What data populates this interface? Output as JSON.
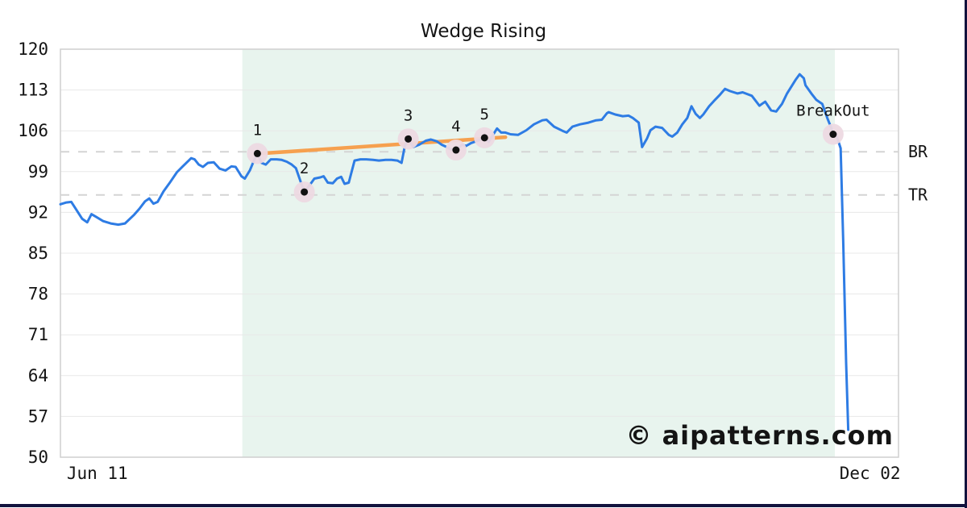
{
  "title": "Wedge Rising",
  "watermark": "© aipatterns.com",
  "colors": {
    "price_line": "#2e7ce4",
    "trendline": "#f6a04f",
    "marker_halo": "#edd9e1",
    "marker_dot": "#111111",
    "pattern_region": "#e8f4ee",
    "gridline": "#e8e8e8",
    "frame": "#cfcfcf",
    "level_dash": "#d4d4d4",
    "watermark": "#c5c8f0",
    "window_edge": "#12123e",
    "text": "#141414"
  },
  "chart_data": {
    "type": "line",
    "title": "Wedge Rising",
    "xlabel": "",
    "ylabel": "",
    "ylim": [
      50,
      120
    ],
    "yticks": [
      120,
      113,
      106,
      99,
      92,
      85,
      78,
      71,
      64,
      57,
      50
    ],
    "xticks": [
      {
        "label": "Jun 11",
        "pos": 4.4
      },
      {
        "label": "Dec 02",
        "pos": 96.6
      }
    ],
    "grid": true,
    "legend": "none",
    "pattern_region": {
      "start_pos": 21.7,
      "end_pos": 92.4
    },
    "levels": [
      {
        "label": "BR",
        "value": 102.4
      },
      {
        "label": "TR",
        "value": 95.0
      }
    ],
    "trendline": {
      "from": [
        23.8,
        102.1
      ],
      "to": [
        53.1,
        104.9
      ]
    },
    "markers": [
      {
        "label": "1",
        "pos": 23.5,
        "value": 102.1
      },
      {
        "label": "2",
        "pos": 29.1,
        "value": 95.5
      },
      {
        "label": "3",
        "pos": 41.5,
        "value": 104.6
      },
      {
        "label": "4",
        "pos": 47.2,
        "value": 102.7
      },
      {
        "label": "5",
        "pos": 50.6,
        "value": 104.8
      },
      {
        "label": "BreakOut",
        "pos": 92.2,
        "value": 105.4
      }
    ],
    "series": [
      {
        "name": "price",
        "points": [
          [
            0,
            93.4
          ],
          [
            0.7,
            93.7
          ],
          [
            1.3,
            93.8
          ],
          [
            2.6,
            90.9
          ],
          [
            3.2,
            90.3
          ],
          [
            3.7,
            91.7
          ],
          [
            4.3,
            91.2
          ],
          [
            5.1,
            90.5
          ],
          [
            6.0,
            90.1
          ],
          [
            6.9,
            89.9
          ],
          [
            7.7,
            90.1
          ],
          [
            8.8,
            91.6
          ],
          [
            9.4,
            92.6
          ],
          [
            10.1,
            93.9
          ],
          [
            10.6,
            94.4
          ],
          [
            11.1,
            93.5
          ],
          [
            11.6,
            93.8
          ],
          [
            12.3,
            95.6
          ],
          [
            13.0,
            97.0
          ],
          [
            13.9,
            98.9
          ],
          [
            14.6,
            99.9
          ],
          [
            15.6,
            101.3
          ],
          [
            16.0,
            101.1
          ],
          [
            16.5,
            100.2
          ],
          [
            17.0,
            99.8
          ],
          [
            17.6,
            100.5
          ],
          [
            18.3,
            100.6
          ],
          [
            19.0,
            99.5
          ],
          [
            19.7,
            99.2
          ],
          [
            20.4,
            99.9
          ],
          [
            20.9,
            99.8
          ],
          [
            21.6,
            98.2
          ],
          [
            22.0,
            97.8
          ],
          [
            22.6,
            99.2
          ],
          [
            23.1,
            100.9
          ],
          [
            23.5,
            102.1
          ],
          [
            24.0,
            100.5
          ],
          [
            24.5,
            100.2
          ],
          [
            25.1,
            101.1
          ],
          [
            25.8,
            101.1
          ],
          [
            26.4,
            101.0
          ],
          [
            27.0,
            100.7
          ],
          [
            27.6,
            100.2
          ],
          [
            28.1,
            99.6
          ],
          [
            28.7,
            97.1
          ],
          [
            29.1,
            95.5
          ],
          [
            29.7,
            96.6
          ],
          [
            30.3,
            97.8
          ],
          [
            31.0,
            98.0
          ],
          [
            31.4,
            98.2
          ],
          [
            31.9,
            97.1
          ],
          [
            32.5,
            97.0
          ],
          [
            33.0,
            97.8
          ],
          [
            33.5,
            98.1
          ],
          [
            33.9,
            96.9
          ],
          [
            34.4,
            97.1
          ],
          [
            35.1,
            100.9
          ],
          [
            35.8,
            101.1
          ],
          [
            36.5,
            101.1
          ],
          [
            37.3,
            101.0
          ],
          [
            38.0,
            100.9
          ],
          [
            38.8,
            101.0
          ],
          [
            39.5,
            101.0
          ],
          [
            40.2,
            100.9
          ],
          [
            40.7,
            100.5
          ],
          [
            41.1,
            103.4
          ],
          [
            41.5,
            104.6
          ],
          [
            42.1,
            103.2
          ],
          [
            42.8,
            103.6
          ],
          [
            43.6,
            104.3
          ],
          [
            44.2,
            104.5
          ],
          [
            44.9,
            104.2
          ],
          [
            45.5,
            103.6
          ],
          [
            46.1,
            103.2
          ],
          [
            46.6,
            102.8
          ],
          [
            47.2,
            102.7
          ],
          [
            47.9,
            103.6
          ],
          [
            48.4,
            103.4
          ],
          [
            49.0,
            103.9
          ],
          [
            49.8,
            104.3
          ],
          [
            50.6,
            104.8
          ],
          [
            51.1,
            104.1
          ],
          [
            52.1,
            106.4
          ],
          [
            52.6,
            105.7
          ],
          [
            53.1,
            105.7
          ],
          [
            53.7,
            105.4
          ],
          [
            54.6,
            105.3
          ],
          [
            55.6,
            106.1
          ],
          [
            56.5,
            107.1
          ],
          [
            57.5,
            107.8
          ],
          [
            58.0,
            107.9
          ],
          [
            58.9,
            106.7
          ],
          [
            59.9,
            106.0
          ],
          [
            60.4,
            105.7
          ],
          [
            61.1,
            106.7
          ],
          [
            62.0,
            107.1
          ],
          [
            63.0,
            107.4
          ],
          [
            63.9,
            107.8
          ],
          [
            64.6,
            107.9
          ],
          [
            65.2,
            109.0
          ],
          [
            65.4,
            109.2
          ],
          [
            66.2,
            108.8
          ],
          [
            67.1,
            108.5
          ],
          [
            67.8,
            108.6
          ],
          [
            68.3,
            108.2
          ],
          [
            69.0,
            107.4
          ],
          [
            69.4,
            103.2
          ],
          [
            70.0,
            104.7
          ],
          [
            70.4,
            106.1
          ],
          [
            71.0,
            106.7
          ],
          [
            71.8,
            106.5
          ],
          [
            72.6,
            105.3
          ],
          [
            73.0,
            105.0
          ],
          [
            73.6,
            105.7
          ],
          [
            74.2,
            107.1
          ],
          [
            74.8,
            108.2
          ],
          [
            75.3,
            110.2
          ],
          [
            75.8,
            108.9
          ],
          [
            76.3,
            108.2
          ],
          [
            76.7,
            108.8
          ],
          [
            77.4,
            110.2
          ],
          [
            78.1,
            111.3
          ],
          [
            78.7,
            112.2
          ],
          [
            79.3,
            113.2
          ],
          [
            79.9,
            112.8
          ],
          [
            80.8,
            112.4
          ],
          [
            81.4,
            112.6
          ],
          [
            82.5,
            112.0
          ],
          [
            83.4,
            110.3
          ],
          [
            83.8,
            110.7
          ],
          [
            84.1,
            111.0
          ],
          [
            84.8,
            109.5
          ],
          [
            85.4,
            109.3
          ],
          [
            86.1,
            110.6
          ],
          [
            86.7,
            112.4
          ],
          [
            87.7,
            114.7
          ],
          [
            88.2,
            115.7
          ],
          [
            88.7,
            115.0
          ],
          [
            88.9,
            113.8
          ],
          [
            89.6,
            112.4
          ],
          [
            90.2,
            111.3
          ],
          [
            90.9,
            110.6
          ],
          [
            91.5,
            108.2
          ],
          [
            92.0,
            106.4
          ],
          [
            92.2,
            105.4
          ],
          [
            92.6,
            105.2
          ],
          [
            93.1,
            103.0
          ],
          [
            93.4,
            87.0
          ],
          [
            93.75,
            66.2
          ],
          [
            94.0,
            54.7
          ]
        ]
      }
    ]
  }
}
